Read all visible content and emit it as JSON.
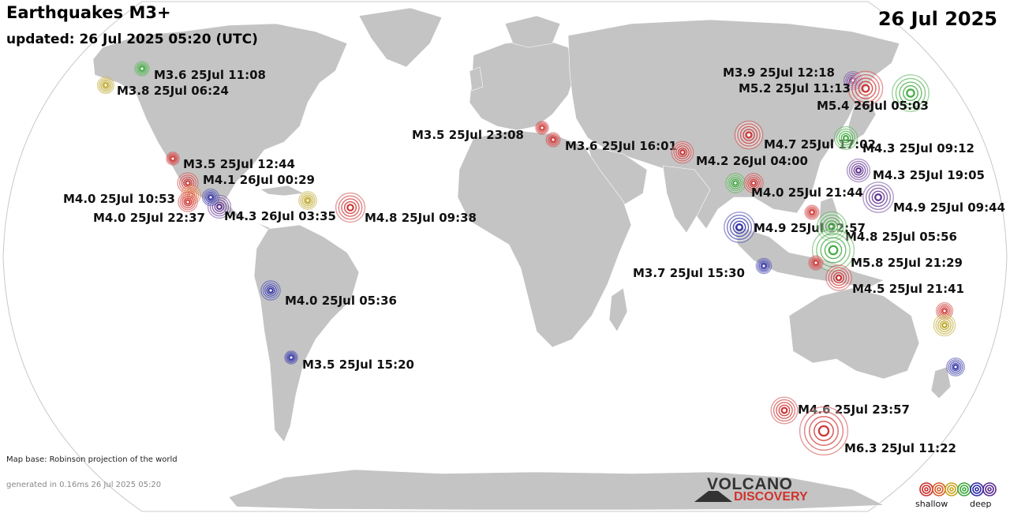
{
  "header": {
    "title": "Earthquakes M3+",
    "updated": "updated: 26 Jul 2025 05:20 (UTC)",
    "date": "26 Jul 2025"
  },
  "footer": {
    "map_note": "Map base: Robinson projection of the world",
    "generated": "generated in 0.16ms 26 Jul 2025 05:20"
  },
  "logo": {
    "line1": "VOLCANO",
    "line2": "DISCOVERY"
  },
  "legend": {
    "shallow": "shallow",
    "deep": "deep",
    "colors": [
      "#cc2a2a",
      "#d95a2a",
      "#c8a21e",
      "#3aa63a",
      "#2a2aa6",
      "#5a2a8a"
    ]
  },
  "depth_colors": {
    "red": "#cc2a2a",
    "orange": "#e0682a",
    "yellow": "#b8a21e",
    "green": "#3aa63a",
    "blue": "#2626a0",
    "purple": "#5a2a8a"
  },
  "quakes": [
    {
      "label": "M3.6 25Jul 11:08",
      "mag": 3.6,
      "color": "green"
    },
    {
      "label": "M3.8 25Jul 06:24",
      "mag": 3.8,
      "color": "yellow"
    },
    {
      "label": "M3.5 25Jul 12:44",
      "mag": 3.5,
      "color": "red"
    },
    {
      "label": "M4.1 26Jul 00:29",
      "mag": 4.1,
      "color": "red"
    },
    {
      "label": "M4.0 25Jul 10:53",
      "mag": 4.0,
      "color": "orange"
    },
    {
      "label": "M4.0 25Jul 22:37",
      "mag": 4.0,
      "color": "red"
    },
    {
      "label": "M4.3 26Jul 03:35",
      "mag": 4.3,
      "color": "purple"
    },
    {
      "label": "",
      "mag": 3.8,
      "color": "blue"
    },
    {
      "label": "",
      "mag": 3.9,
      "color": "yellow"
    },
    {
      "label": "M4.8 25Jul 09:38",
      "mag": 4.8,
      "color": "red"
    },
    {
      "label": "M4.0 25Jul 05:36",
      "mag": 4.0,
      "color": "blue"
    },
    {
      "label": "M3.5 25Jul 15:20",
      "mag": 3.5,
      "color": "blue"
    },
    {
      "label": "M3.5 25Jul 23:08",
      "mag": 3.5,
      "color": "red"
    },
    {
      "label": "M3.6 25Jul 16:01",
      "mag": 3.6,
      "color": "red"
    },
    {
      "label": "M4.2 26Jul 04:00",
      "mag": 4.2,
      "color": "red"
    },
    {
      "label": "M4.7 25Jul 17:02",
      "mag": 4.7,
      "color": "red"
    },
    {
      "label": "",
      "mag": 4.0,
      "color": "green"
    },
    {
      "label": "M4.0 25Jul 21:44",
      "mag": 4.0,
      "color": "red"
    },
    {
      "label": "M4.9 25Jul 12:57",
      "mag": 4.9,
      "color": "blue"
    },
    {
      "label": "M3.7 25Jul 15:30",
      "mag": 3.7,
      "color": "blue"
    },
    {
      "label": "",
      "mag": 3.6,
      "color": "red"
    },
    {
      "label": "M4.8 25Jul 05:56",
      "mag": 4.8,
      "color": "green"
    },
    {
      "label": "M5.8 25Jul 21:29",
      "mag": 5.8,
      "color": "green"
    },
    {
      "label": "",
      "mag": 3.6,
      "color": "red"
    },
    {
      "label": "M4.5 25Jul 21:41",
      "mag": 4.5,
      "color": "red"
    },
    {
      "label": "M3.9 25Jul 12:18",
      "mag": 3.9,
      "color": "purple"
    },
    {
      "label": "M5.2 25Jul 11:13",
      "mag": 5.2,
      "color": "red"
    },
    {
      "label": "M5.4 26Jul 05:03",
      "mag": 5.4,
      "color": "green"
    },
    {
      "label": "M4.3 25Jul 09:12",
      "mag": 4.3,
      "color": "green"
    },
    {
      "label": "M4.3 25Jul 19:05",
      "mag": 4.3,
      "color": "purple"
    },
    {
      "label": "M4.9 25Jul 09:44",
      "mag": 4.9,
      "color": "purple"
    },
    {
      "label": "",
      "mag": 3.8,
      "color": "red"
    },
    {
      "label": "",
      "mag": 4.2,
      "color": "yellow"
    },
    {
      "label": "",
      "mag": 3.9,
      "color": "blue"
    },
    {
      "label": "M4.6 25Jul 23:57",
      "mag": 4.6,
      "color": "red"
    },
    {
      "label": "M6.3 25Jul 11:22",
      "mag": 6.3,
      "color": "red"
    }
  ]
}
